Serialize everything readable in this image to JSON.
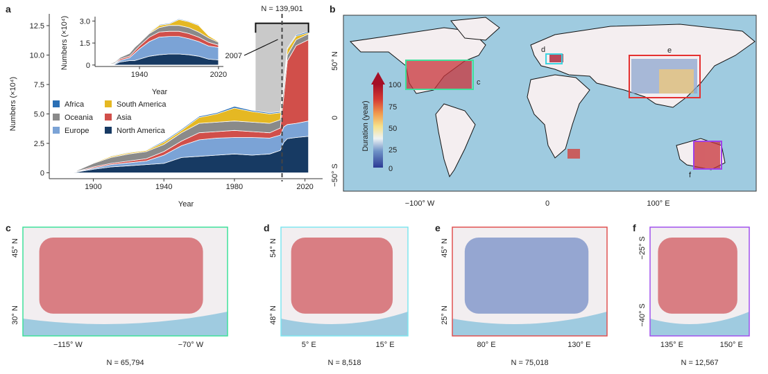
{
  "panel_labels": [
    "a",
    "b",
    "c",
    "d",
    "e",
    "f"
  ],
  "chart_data": [
    {
      "type": "area",
      "stacked": true,
      "panel": "a",
      "xlabel": "Year",
      "ylabel": "Numbers (×10⁴)",
      "xticks": [
        "1900",
        "1940",
        "1980",
        "2020"
      ],
      "yticks": [
        "0",
        "2.5",
        "5.0",
        "7.5",
        "10.0",
        "12.5"
      ],
      "xlim": [
        1875,
        2030
      ],
      "ylim": [
        -0.5,
        13.5
      ],
      "legend_position": "middle-left",
      "annotation_total": "N = 139,901",
      "annotation_year": "2007",
      "highlight_range": [
        1992,
        2022
      ],
      "x": [
        1880,
        1890,
        1900,
        1910,
        1920,
        1930,
        1940,
        1950,
        1960,
        1970,
        1980,
        1990,
        2000,
        2006,
        2008,
        2010,
        2015,
        2022
      ],
      "series": [
        {
          "name": "North America",
          "color": "#173a63",
          "values": [
            0,
            0.05,
            0.3,
            0.5,
            0.6,
            0.7,
            0.8,
            1.3,
            1.4,
            1.5,
            1.6,
            1.5,
            1.6,
            1.9,
            2.6,
            2.9,
            3.0,
            3.1
          ]
        },
        {
          "name": "Europe",
          "color": "#7ba3d6",
          "values": [
            0,
            0.03,
            0.1,
            0.2,
            0.25,
            0.3,
            0.7,
            1.0,
            1.4,
            1.45,
            1.4,
            1.5,
            1.35,
            1.3,
            1.3,
            1.2,
            1.2,
            1.3
          ]
        },
        {
          "name": "Asia",
          "color": "#d14f4a",
          "values": [
            0,
            0.02,
            0.1,
            0.1,
            0.15,
            0.2,
            0.3,
            0.4,
            0.6,
            0.55,
            0.6,
            0.5,
            0.45,
            0.6,
            2.6,
            5.4,
            6.6,
            6.9
          ]
        },
        {
          "name": "Oceania",
          "color": "#8a8a8a",
          "values": [
            0,
            0.05,
            0.3,
            0.5,
            0.6,
            0.6,
            0.6,
            0.7,
            0.8,
            0.8,
            0.8,
            0.8,
            0.8,
            0.7,
            0.8,
            0.5,
            0.5,
            0.5
          ]
        },
        {
          "name": "South America",
          "color": "#e5b823",
          "values": [
            0,
            0,
            0.05,
            0.1,
            0.1,
            0.1,
            0.2,
            0.2,
            0.5,
            0.7,
            1.1,
            0.9,
            0.8,
            0.6,
            0.3,
            0.5,
            0.3,
            0.1
          ]
        },
        {
          "name": "Africa",
          "color": "#2a6fb5",
          "values": [
            0,
            0,
            0.05,
            0.05,
            0.05,
            0.05,
            0.1,
            0.1,
            0.1,
            0.1,
            0.15,
            0.1,
            0.1,
            0.1,
            0.1,
            0.1,
            0.1,
            0.1
          ]
        }
      ]
    },
    {
      "type": "area",
      "stacked": true,
      "panel": "a-inset",
      "xlabel": "Year",
      "ylabel": "Numbers (×10⁴)",
      "xticks": [
        "1940",
        "2020"
      ],
      "yticks": [
        "0",
        "1.5",
        "3.0"
      ],
      "xlim": [
        1895,
        2025
      ],
      "ylim": [
        -0.1,
        3.3
      ],
      "x": [
        1905,
        1915,
        1920,
        1930,
        1935,
        1940,
        1950,
        1960,
        1970,
        1980,
        1990,
        2000,
        2010,
        2020
      ],
      "series": [
        {
          "name": "North America",
          "color": "#173a63",
          "values": [
            0,
            0.05,
            0.2,
            0.3,
            0.3,
            0.4,
            0.6,
            0.7,
            0.75,
            0.75,
            0.7,
            0.6,
            0.4,
            0.35
          ]
        },
        {
          "name": "Europe",
          "color": "#7ba3d6",
          "values": [
            0,
            0.05,
            0.1,
            0.2,
            0.5,
            0.7,
            1.0,
            1.2,
            1.2,
            1.2,
            1.1,
            1.0,
            0.9,
            0.85
          ]
        },
        {
          "name": "Asia",
          "color": "#d14f4a",
          "values": [
            0,
            0.02,
            0.1,
            0.1,
            0.15,
            0.2,
            0.3,
            0.35,
            0.35,
            0.35,
            0.35,
            0.3,
            0.25,
            0.15
          ]
        },
        {
          "name": "Oceania",
          "color": "#8a8a8a",
          "values": [
            0,
            0.08,
            0.1,
            0.2,
            0.25,
            0.2,
            0.25,
            0.3,
            0.4,
            0.4,
            0.4,
            0.35,
            0.3,
            0.2
          ]
        },
        {
          "name": "South America",
          "color": "#e5b823",
          "values": [
            0,
            0,
            0,
            0,
            0,
            0,
            0.05,
            0.15,
            0.1,
            0.4,
            0.4,
            0.45,
            0.15,
            0.05
          ]
        },
        {
          "name": "Africa",
          "color": "#2a6fb5",
          "values": [
            0,
            0,
            0,
            0,
            0.02,
            0.02,
            0.05,
            0.05,
            0.05,
            0.05,
            0.05,
            0.05,
            0.02,
            0.02
          ]
        }
      ]
    }
  ],
  "legend_order": [
    "Africa",
    "South America",
    "Oceania",
    "Asia",
    "Europe",
    "North America"
  ],
  "world_map": {
    "panel": "b",
    "xticks": [
      "−100° W",
      "0",
      "100° E"
    ],
    "yticks": [
      "50° N",
      "0",
      "−50° S"
    ],
    "colorbar": {
      "title": "Duration (year)",
      "ticks": [
        "0",
        "25",
        "50",
        "75",
        "100"
      ],
      "colors": [
        "#2b3a94",
        "#6f93c7",
        "#eef3f4",
        "#f5e08a",
        "#f09a4e",
        "#d53a33",
        "#a50f26"
      ]
    },
    "ocean_color": "#9fcbe0",
    "regions": [
      {
        "label": "c",
        "color": "#3ee09a"
      },
      {
        "label": "d",
        "color": "#3cd3e0"
      },
      {
        "label": "e",
        "color": "#e53030"
      },
      {
        "label": "f",
        "color": "#a040e8"
      }
    ]
  },
  "regional_maps": [
    {
      "panel": "c",
      "border": "#3ee09a",
      "xticks": [
        "−115° W",
        "−70° W"
      ],
      "yticks": [
        "45° N",
        "30° N"
      ],
      "n": "N = 65,794",
      "dominant": "#c8333a"
    },
    {
      "panel": "d",
      "border": "#7fe6ef",
      "xticks": [
        "5° E",
        "15° E"
      ],
      "yticks": [
        "54° N",
        "48° N"
      ],
      "n": "N = 8,518",
      "dominant": "#c8333a"
    },
    {
      "panel": "e",
      "border": "#e05050",
      "xticks": [
        "80° E",
        "130° E"
      ],
      "yticks": [
        "45° N",
        "25° N"
      ],
      "n": "N = 75,018",
      "dominant": "#5676bd"
    },
    {
      "panel": "f",
      "border": "#a050ee",
      "xticks": [
        "135° E",
        "150° E"
      ],
      "yticks": [
        "−25° S",
        "−40° S"
      ],
      "n": "N = 12,567",
      "dominant": "#c8333a"
    }
  ]
}
